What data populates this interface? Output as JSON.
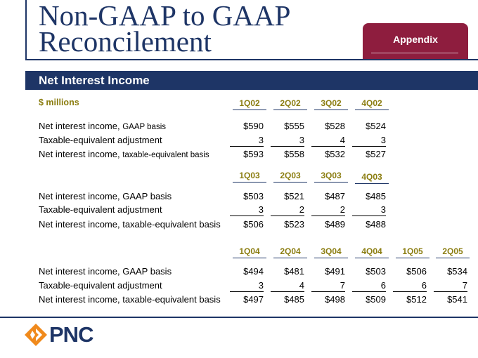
{
  "title": {
    "line1": "Non-GAAP to GAAP",
    "line2": "Reconcilement"
  },
  "tab_label": "Appendix",
  "section_title": "Net Interest Income",
  "units": "$ millions",
  "labels": {
    "gaap_main": "Net interest income, ",
    "gaap_small": "GAAP basis",
    "adj": "Taxable-equivalent adjustment",
    "te_main": "Net interest income, ",
    "te_small": "taxable-equivalent basis",
    "gaap_full": "Net interest income, GAAP basis",
    "te_full": "Net interest income, taxable-equivalent basis"
  },
  "blocks": [
    {
      "headers": [
        "1Q02",
        "2Q02",
        "3Q02",
        "4Q02"
      ],
      "gaap": [
        "$590",
        "$555",
        "$528",
        "$524"
      ],
      "adj": [
        "3",
        "3",
        "4",
        "3"
      ],
      "te": [
        "$593",
        "$558",
        "$532",
        "$527"
      ]
    },
    {
      "headers": [
        "1Q03",
        "2Q03",
        "3Q03",
        "4Q03"
      ],
      "gaap": [
        "$503",
        "$521",
        "$487",
        "$485"
      ],
      "adj": [
        "3",
        "2",
        "2",
        "3"
      ],
      "te": [
        "$506",
        "$523",
        "$489",
        "$488"
      ]
    },
    {
      "headers": [
        "1Q04",
        "2Q04",
        "3Q04",
        "4Q04",
        "1Q05",
        "2Q05"
      ],
      "gaap": [
        "$494",
        "$481",
        "$491",
        "$503",
        "$506",
        "$534"
      ],
      "adj": [
        "3",
        "4",
        "7",
        "6",
        "6",
        "7"
      ],
      "te": [
        "$497",
        "$485",
        "$498",
        "$509",
        "$512",
        "$541"
      ]
    }
  ],
  "logo_text": "PNC",
  "colors": {
    "navy": "#1e3566",
    "maroon": "#8e1d3e",
    "gold": "#8b7d10",
    "orange": "#f08a1c"
  }
}
